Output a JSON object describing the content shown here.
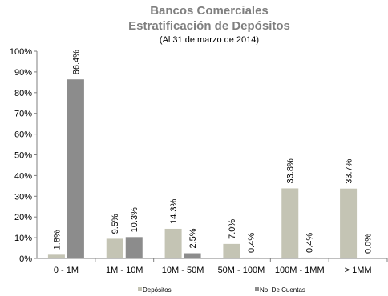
{
  "chart_data": {
    "type": "bar",
    "title": "Bancos Comerciales",
    "subtitle": "Estratificación de Depósitos",
    "note": "(Al 31 de marzo de 2014)",
    "categories": [
      "0 - 1M",
      "1M - 10M",
      "10M - 50M",
      "50M - 100M",
      "100M - 1MM",
      "> 1MM"
    ],
    "series": [
      {
        "name": "Depósitos",
        "color": "#c4c4b4",
        "values": [
          1.8,
          9.5,
          14.3,
          7.0,
          33.8,
          33.7
        ],
        "labels": [
          "1.8%",
          "9.5%",
          "14.3%",
          "7.0%",
          "33.8%",
          "33.7%"
        ]
      },
      {
        "name": "No. De Cuentas",
        "color": "#8c8c8c",
        "values": [
          86.4,
          10.3,
          2.5,
          0.4,
          0.4,
          0.0
        ],
        "labels": [
          "86.4%",
          "10.3%",
          "2.5%",
          "0.4%",
          "0.4%",
          "0.0%"
        ]
      }
    ],
    "ylim": [
      0,
      100
    ],
    "yticks": [
      "0%",
      "10%",
      "20%",
      "30%",
      "40%",
      "50%",
      "60%",
      "70%",
      "80%",
      "90%",
      "100%"
    ],
    "grid": false,
    "legend": "bottom"
  }
}
